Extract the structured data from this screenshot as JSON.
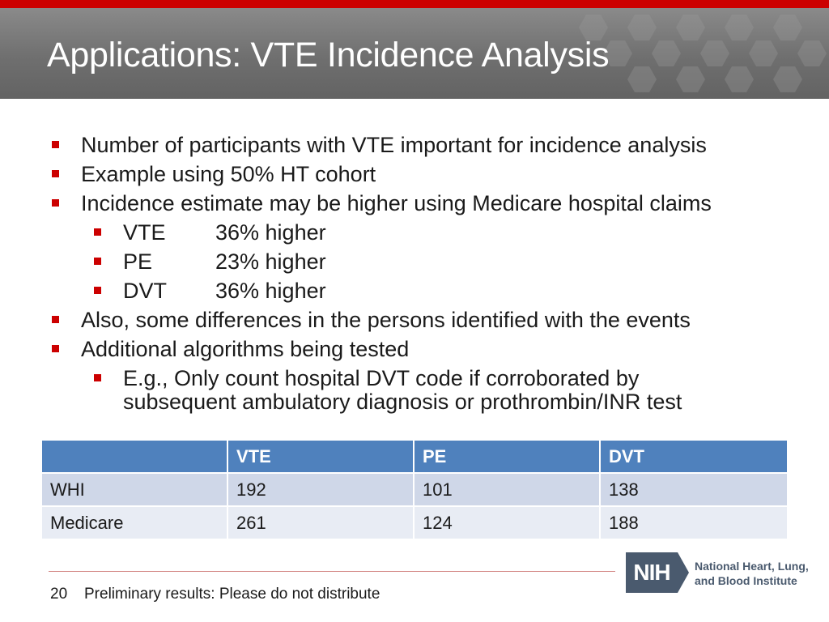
{
  "header": {
    "title": "Applications:  VTE Incidence Analysis"
  },
  "bullets": {
    "b1": "Number of participants with VTE important for incidence analysis",
    "b2": "Example using 50% HT cohort",
    "b3": "Incidence estimate may be higher using Medicare hospital claims",
    "sub1": {
      "label": "VTE",
      "value": "36% higher"
    },
    "sub2": {
      "label": "PE",
      "value": "23% higher"
    },
    "sub3": {
      "label": "DVT",
      "value": "36% higher"
    },
    "b4": "Also, some differences in the persons identified with the events",
    "b5": "Additional algorithms being tested",
    "sub4_line1": "E.g., Only count hospital DVT code if corroborated by",
    "sub4_line2": "subsequent ambulatory diagnosis or prothrombin/INR test"
  },
  "table": {
    "headers": [
      "",
      "VTE",
      "PE",
      "DVT"
    ],
    "rows": [
      [
        "WHI",
        "192",
        "101",
        "138"
      ],
      [
        "Medicare",
        "261",
        "124",
        "188"
      ]
    ]
  },
  "footer": {
    "slide_number": "20",
    "note": "Preliminary results:  Please do not distribute",
    "logo_abbr": "NIH",
    "logo_line1": "National Heart, Lung,",
    "logo_line2": "and Blood Institute"
  },
  "colors": {
    "accent_red": "#cc0000",
    "table_header": "#4f81bd",
    "header_gray": "#6f6f6f"
  }
}
